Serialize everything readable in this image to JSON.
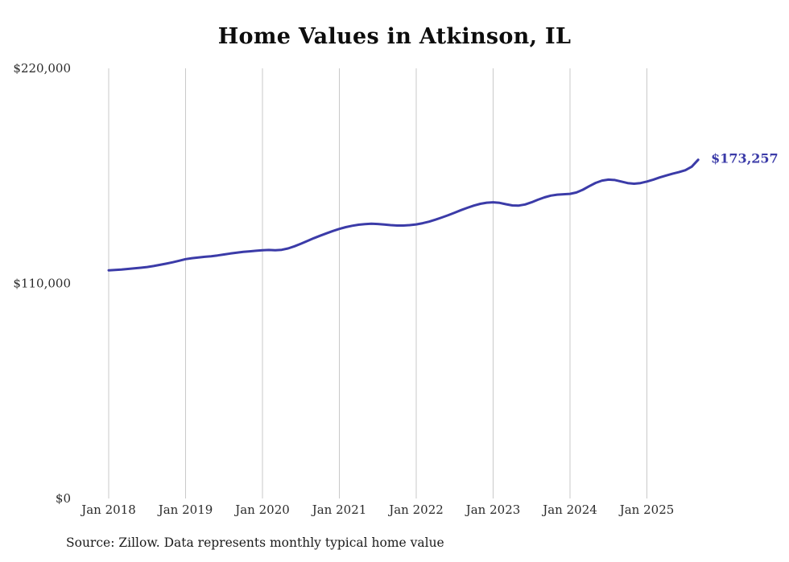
{
  "page": {
    "title": "Home Values in Atkinson, IL",
    "source_note": "Source: Zillow. Data represents monthly typical home value"
  },
  "chart_data": {
    "type": "line",
    "title": "Home Values in Atkinson, IL",
    "xlabel": "",
    "ylabel": "",
    "ylim": [
      0,
      220000
    ],
    "grid": "vertical-only",
    "legend": "none",
    "line_color": "#3b3ba8",
    "grid_color": "#c9c9c9",
    "tick_color": "#2b2b2b",
    "end_label": "$173,257",
    "latest_value": 173257,
    "x_tick_labels": [
      "Jan 2018",
      "Jan 2019",
      "Jan 2020",
      "Jan 2021",
      "Jan 2022",
      "Jan 2023",
      "Jan 2024",
      "Jan 2025"
    ],
    "y_ticks": [
      {
        "label": "$0",
        "value": 0
      },
      {
        "label": "$110,000",
        "value": 110000
      },
      {
        "label": "$220,000",
        "value": 220000
      }
    ],
    "series": [
      {
        "name": "Typical home value",
        "start_month": "Jan 2018",
        "end_month": "Sep 2025",
        "frequency": "monthly",
        "values": [
          116700,
          116900,
          117100,
          117400,
          117700,
          118000,
          118400,
          118900,
          119500,
          120100,
          120800,
          121600,
          122400,
          122900,
          123300,
          123600,
          123900,
          124300,
          124800,
          125300,
          125700,
          126100,
          126400,
          126700,
          127000,
          127100,
          127000,
          127200,
          127900,
          129000,
          130300,
          131700,
          133100,
          134400,
          135600,
          136800,
          137900,
          138800,
          139500,
          140000,
          140300,
          140500,
          140400,
          140100,
          139800,
          139600,
          139600,
          139800,
          140200,
          140800,
          141600,
          142600,
          143700,
          144900,
          146200,
          147500,
          148700,
          149800,
          150700,
          151300,
          151500,
          151200,
          150500,
          149900,
          149800,
          150400,
          151500,
          152800,
          154000,
          154900,
          155400,
          155600,
          155800,
          156500,
          157900,
          159700,
          161400,
          162600,
          163100,
          162900,
          162100,
          161300,
          161000,
          161300,
          162100,
          163100,
          164200,
          165200,
          166100,
          166900,
          167900,
          169700,
          173257
        ]
      }
    ]
  }
}
